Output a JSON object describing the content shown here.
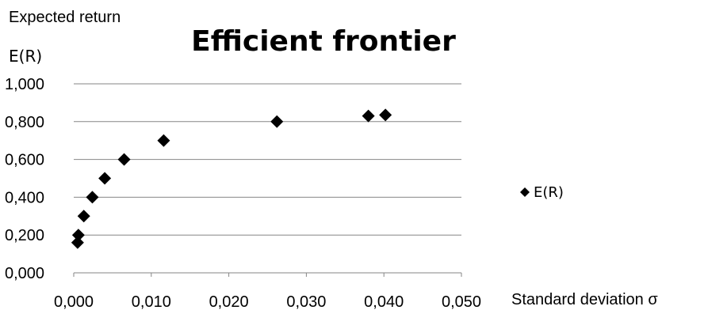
{
  "chart_data": {
    "type": "scatter",
    "title": "Efficient frontier",
    "ylabel_line1": "Expected return",
    "ylabel_line2": "E(R)",
    "xlabel": "Standard deviation σ",
    "xlim": [
      0,
      0.05
    ],
    "ylim": [
      0,
      1
    ],
    "x_ticks": [
      0,
      0.01,
      0.02,
      0.03,
      0.04,
      0.05
    ],
    "x_tick_labels": [
      "0,000",
      "0,010",
      "0,020",
      "0,030",
      "0,040",
      "0,050"
    ],
    "y_ticks": [
      0,
      0.2,
      0.4,
      0.6,
      0.8,
      1.0
    ],
    "y_tick_labels": [
      "0,000",
      "0,200",
      "0,400",
      "0,600",
      "0,800",
      "1,000"
    ],
    "grid": "horizontal",
    "legend_position": "right",
    "marker": "diamond",
    "series": [
      {
        "name": "E(R)",
        "color": "#000000",
        "points": [
          {
            "x": 0.0005,
            "y": 0.16
          },
          {
            "x": 0.0006,
            "y": 0.2
          },
          {
            "x": 0.0013,
            "y": 0.3
          },
          {
            "x": 0.0024,
            "y": 0.4
          },
          {
            "x": 0.004,
            "y": 0.5
          },
          {
            "x": 0.0065,
            "y": 0.6
          },
          {
            "x": 0.0116,
            "y": 0.7
          },
          {
            "x": 0.0262,
            "y": 0.8
          },
          {
            "x": 0.038,
            "y": 0.83
          },
          {
            "x": 0.0402,
            "y": 0.835
          }
        ]
      }
    ]
  }
}
